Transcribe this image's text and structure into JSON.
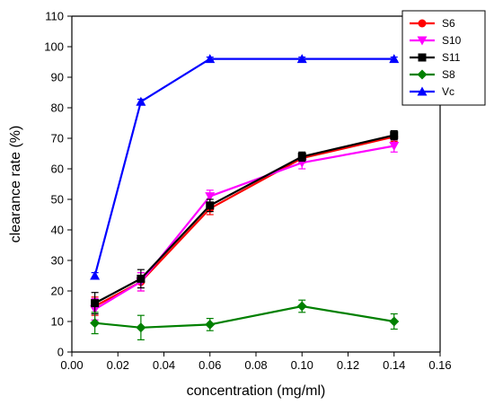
{
  "chart_data": {
    "type": "line",
    "xlabel": "concentration (mg/ml)",
    "ylabel": "clearance rate (%)",
    "xlim": [
      0.0,
      0.16
    ],
    "ylim": [
      0,
      110
    ],
    "x_ticks": [
      "0.00",
      "0.02",
      "0.04",
      "0.06",
      "0.08",
      "0.10",
      "0.12",
      "0.14",
      "0.16"
    ],
    "y_ticks": [
      "0",
      "10",
      "20",
      "30",
      "40",
      "50",
      "60",
      "70",
      "80",
      "90",
      "100",
      "110"
    ],
    "x": [
      0.01,
      0.03,
      0.06,
      0.1,
      0.14
    ],
    "grid": false,
    "legend_position": "top-right",
    "series": [
      {
        "name": "S6",
        "color": "#ff0000",
        "marker": "circle",
        "values": [
          15.0,
          23.0,
          47.0,
          63.5,
          70.5
        ],
        "errors": [
          3.0,
          3.0,
          2.0,
          1.5,
          1.5
        ]
      },
      {
        "name": "S10",
        "color": "#ff00ff",
        "marker": "triangle-down",
        "values": [
          14.0,
          23.0,
          51.0,
          62.0,
          67.5
        ],
        "errors": [
          3.5,
          3.0,
          2.0,
          2.0,
          2.0
        ]
      },
      {
        "name": "S11",
        "color": "#000000",
        "marker": "square",
        "values": [
          16.0,
          24.0,
          48.0,
          64.0,
          71.0
        ],
        "errors": [
          3.5,
          3.0,
          2.0,
          1.5,
          1.5
        ]
      },
      {
        "name": "S8",
        "color": "#008000",
        "marker": "diamond",
        "values": [
          9.5,
          8.0,
          9.0,
          15.0,
          10.0
        ],
        "errors": [
          3.5,
          4.0,
          2.0,
          2.0,
          2.5
        ]
      },
      {
        "name": "Vc",
        "color": "#0000ff",
        "marker": "triangle-up",
        "values": [
          25.0,
          82.0,
          96.0,
          96.0,
          96.0
        ],
        "errors": [
          1.0,
          0.8,
          0.6,
          0.6,
          0.6
        ]
      }
    ]
  }
}
